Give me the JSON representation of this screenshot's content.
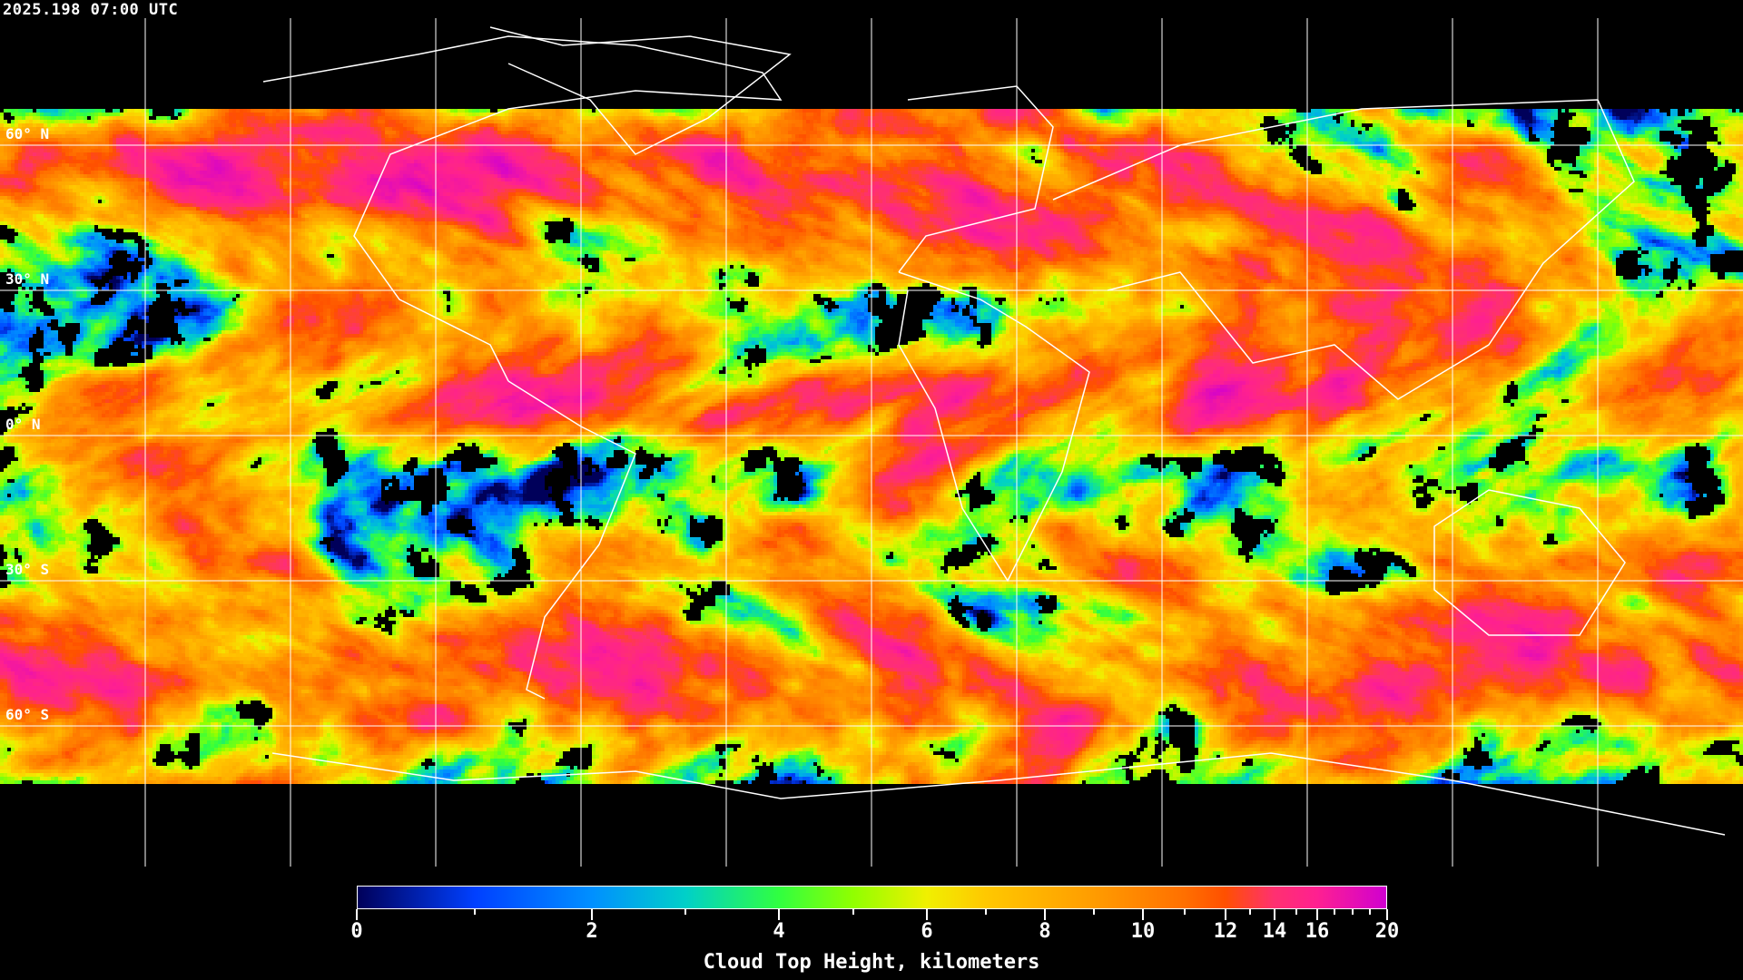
{
  "header": {
    "timestamp": "2025.198 07:00 UTC"
  },
  "map": {
    "projection": "equirectangular",
    "gridlines": true,
    "gridline_spacing_degrees": 30,
    "coastlines_color": "#ffffff",
    "lat_labels": [
      "60° N",
      "30° N",
      "0° N",
      "30° S",
      "60° S"
    ],
    "lat_values": [
      60,
      30,
      0,
      -30,
      -60
    ],
    "missing_data_color": "#000000"
  },
  "colorbar": {
    "title": "Cloud Top Height, kilometers",
    "range": [
      0,
      20
    ],
    "tick_labels": [
      "0",
      "2",
      "4",
      "6",
      "8",
      "10",
      "12",
      "14",
      "16",
      "20"
    ],
    "tick_values": [
      0,
      2,
      4,
      6,
      8,
      10,
      12,
      14,
      16,
      20
    ],
    "minor_tick_values": [
      1,
      3,
      5,
      7,
      9,
      11,
      13,
      15,
      17,
      18,
      19
    ],
    "colormap": [
      {
        "value": 0,
        "color": "#00005a"
      },
      {
        "value": 1,
        "color": "#0040ff"
      },
      {
        "value": 2,
        "color": "#0090ff"
      },
      {
        "value": 3,
        "color": "#00d0c8"
      },
      {
        "value": 4,
        "color": "#30ff40"
      },
      {
        "value": 5,
        "color": "#90ff00"
      },
      {
        "value": 6,
        "color": "#f0f000"
      },
      {
        "value": 7,
        "color": "#ffc800"
      },
      {
        "value": 9,
        "color": "#ff9c00"
      },
      {
        "value": 11,
        "color": "#ff7000"
      },
      {
        "value": 12,
        "color": "#ff5000"
      },
      {
        "value": 14,
        "color": "#ff3070"
      },
      {
        "value": 16,
        "color": "#ff2090"
      },
      {
        "value": 20,
        "color": "#d000d0"
      }
    ]
  }
}
